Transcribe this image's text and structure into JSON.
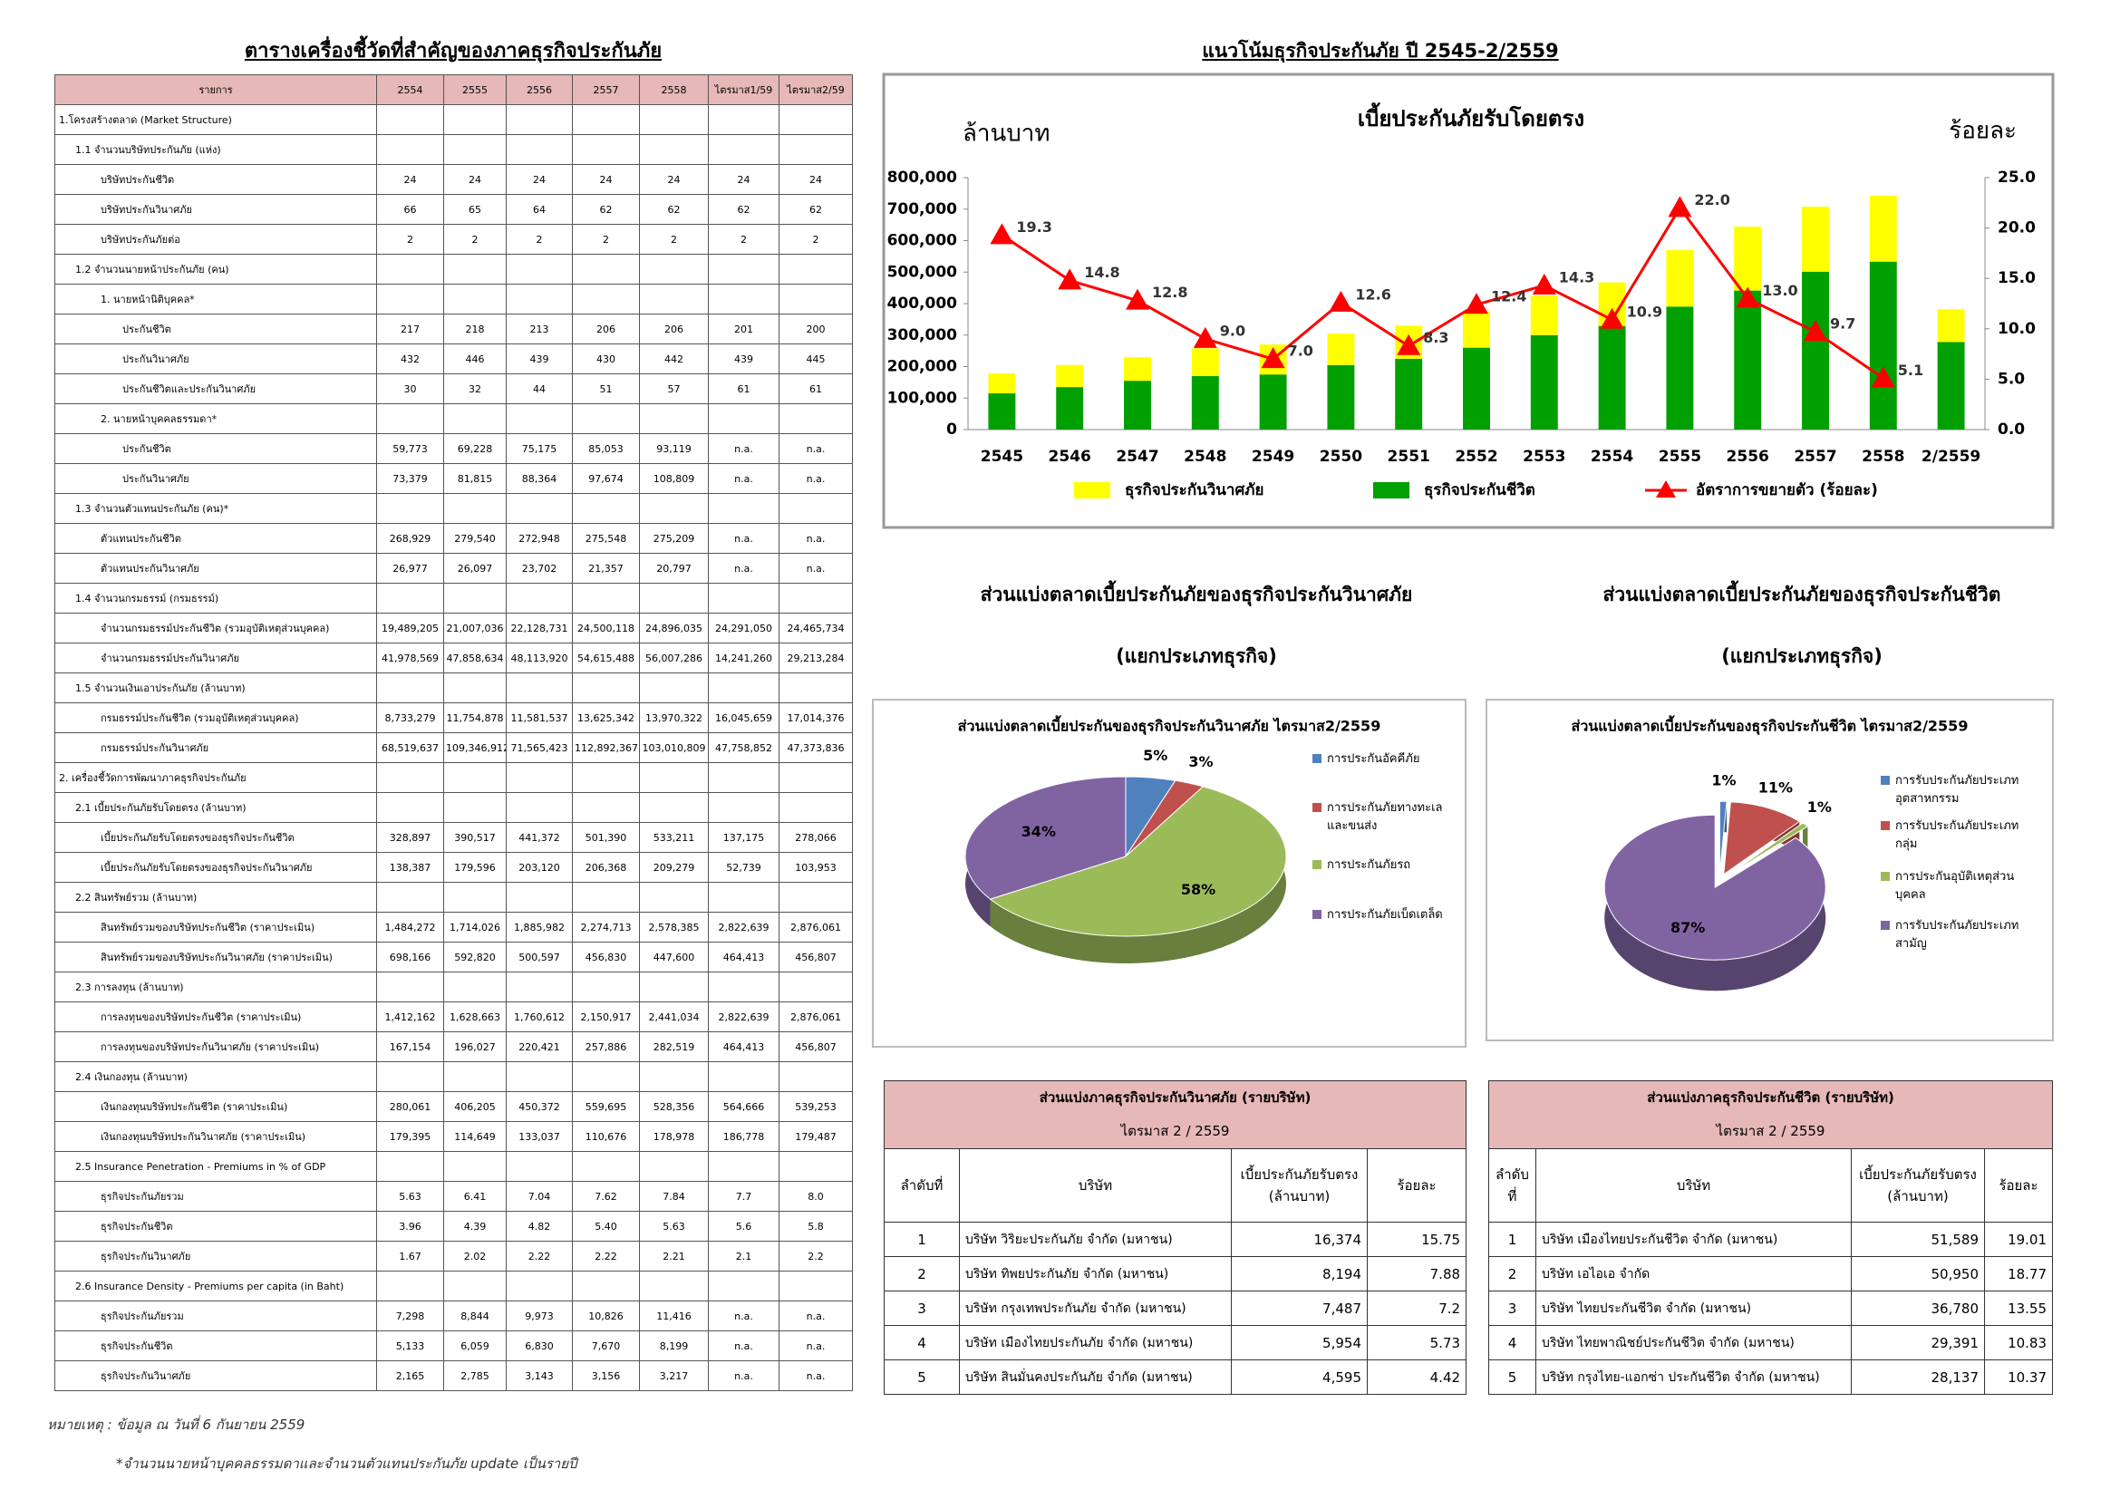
{
  "left_table": {
    "title": "ตารางเครื่องชี้วัดที่สำคัญของภาคธุรกิจประกันภัย",
    "header": [
      "รายการ",
      "2554",
      "2555",
      "2556",
      "2557",
      "2558",
      "ไตรมาส1/59",
      "ไตรมาส2/59"
    ],
    "rows": [
      [
        "1.โครงสร้างตลาด (Market Structure)"
      ],
      [
        "1.1 จำนวนบริษัทประกันภัย (แห่ง)"
      ],
      [
        "บริษัทประกันชีวิต",
        "24",
        "24",
        "24",
        "24",
        "24",
        "24",
        "24"
      ],
      [
        "บริษัทประกันวินาศภัย",
        "66",
        "65",
        "64",
        "62",
        "62",
        "62",
        "62"
      ],
      [
        "บริษัทประกันภัยต่อ",
        "2",
        "2",
        "2",
        "2",
        "2",
        "2",
        "2"
      ],
      [
        "1.2 จำนวนนายหน้าประกันภัย (คน)"
      ],
      [
        "1. นายหน้านิติบุคคล*"
      ],
      [
        "ประกันชีวิต",
        "217",
        "218",
        "213",
        "206",
        "206",
        "201",
        "200"
      ],
      [
        "ประกันวินาศภัย",
        "432",
        "446",
        "439",
        "430",
        "442",
        "439",
        "445"
      ],
      [
        "ประกันชีวิตและประกันวินาศภัย",
        "30",
        "32",
        "44",
        "51",
        "57",
        "61",
        "61"
      ],
      [
        "2. นายหน้าบุคคลธรรมดา*"
      ],
      [
        "ประกันชีวิต",
        "59,773",
        "69,228",
        "75,175",
        "85,053",
        "93,119",
        "n.a.",
        "n.a."
      ],
      [
        "ประกันวินาศภัย",
        "73,379",
        "81,815",
        "88,364",
        "97,674",
        "108,809",
        "n.a.",
        "n.a."
      ],
      [
        "1.3 จำนวนตัวแทนประกันภัย (คน)*"
      ],
      [
        "ตัวแทนประกันชีวิต",
        "268,929",
        "279,540",
        "272,948",
        "275,548",
        "275,209",
        "n.a.",
        "n.a."
      ],
      [
        "ตัวแทนประกันวินาศภัย",
        "26,977",
        "26,097",
        "23,702",
        "21,357",
        "20,797",
        "n.a.",
        "n.a."
      ],
      [
        "1.4 จำนวนกรมธรรม์ (กรมธรรม์)"
      ],
      [
        "จำนวนกรมธรรม์ประกันชีวิต (รวมอุบัติเหตุส่วนบุคคล)",
        "19,489,205",
        "21,007,036",
        "22,128,731",
        "24,500,118",
        "24,896,035",
        "24,291,050",
        "24,465,734"
      ],
      [
        "จำนวนกรมธรรม์ประกันวินาศภัย",
        "41,978,569",
        "47,858,634",
        "48,113,920",
        "54,615,488",
        "56,007,286",
        "14,241,260",
        "29,213,284"
      ],
      [
        "1.5 จำนวนเงินเอาประกันภัย (ล้านบาท)"
      ],
      [
        "กรมธรรม์ประกันชีวิต (รวมอุบัติเหตุส่วนบุคคล)",
        "8,733,279",
        "11,754,878",
        "11,581,537",
        "13,625,342",
        "13,970,322",
        "16,045,659",
        "17,014,376"
      ],
      [
        "กรมธรรม์ประกันวินาศภัย",
        "68,519,637",
        "109,346,912",
        "71,565,423",
        "112,892,367",
        "103,010,809",
        "47,758,852",
        "47,373,836"
      ],
      [
        "2. เครื่องชี้วัดการพัฒนาภาคธุรกิจประกันภัย"
      ],
      [
        "2.1 เบี้ยประกันภัยรับโดยตรง (ล้านบาท)"
      ],
      [
        "เบี้ยประกันภัยรับโดยตรงของธุรกิจประกันชีวิต",
        "328,897",
        "390,517",
        "441,372",
        "501,390",
        "533,211",
        "137,175",
        "278,066"
      ],
      [
        "เบี้ยประกันภัยรับโดยตรงของธุรกิจประกันวินาศภัย",
        "138,387",
        "179,596",
        "203,120",
        "206,368",
        "209,279",
        "52,739",
        "103,953"
      ],
      [
        "2.2 สินทรัพย์รวม (ล้านบาท)"
      ],
      [
        "สินทรัพย์รวมของบริษัทประกันชีวิต (ราคาประเมิน)",
        "1,484,272",
        "1,714,026",
        "1,885,982",
        "2,274,713",
        "2,578,385",
        "2,822,639",
        "2,876,061"
      ],
      [
        "สินทรัพย์รวมของบริษัทประกันวินาศภัย (ราคาประเมิน)",
        "698,166",
        "592,820",
        "500,597",
        "456,830",
        "447,600",
        "464,413",
        "456,807"
      ],
      [
        "2.3 การลงทุน (ล้านบาท)"
      ],
      [
        "การลงทุนของบริษัทประกันชีวิต (ราคาประเมิน)",
        "1,412,162",
        "1,628,663",
        "1,760,612",
        "2,150,917",
        "2,441,034",
        "2,822,639",
        "2,876,061"
      ],
      [
        "การลงทุนของบริษัทประกันวินาศภัย (ราคาประเมิน)",
        "167,154",
        "196,027",
        "220,421",
        "257,886",
        "282,519",
        "464,413",
        "456,807"
      ],
      [
        "2.4 เงินกองทุน (ล้านบาท)"
      ],
      [
        "เงินกองทุนบริษัทประกันชีวิต (ราคาประเมิน)",
        "280,061",
        "406,205",
        "450,372",
        "559,695",
        "528,356",
        "564,666",
        "539,253"
      ],
      [
        "เงินกองทุนบริษัทประกันวินาศภัย (ราคาประเมิน)",
        "179,395",
        "114,649",
        "133,037",
        "110,676",
        "178,978",
        "186,778",
        "179,487"
      ],
      [
        "2.5 Insurance Penetration - Premiums in % of GDP"
      ],
      [
        "ธุรกิจประกันภัยรวม",
        "5.63",
        "6.41",
        "7.04",
        "7.62",
        "7.84",
        "7.7",
        "8.0"
      ],
      [
        "ธุรกิจประกันชีวิต",
        "3.96",
        "4.39",
        "4.82",
        "5.40",
        "5.63",
        "5.6",
        "5.8"
      ],
      [
        "ธุรกิจประกันวินาศภัย",
        "1.67",
        "2.02",
        "2.22",
        "2.22",
        "2.21",
        "2.1",
        "2.2"
      ],
      [
        "2.6 Insurance Density - Premiums per capita (in Baht)"
      ],
      [
        "ธุรกิจประกันภัยรวม",
        "7,298",
        "8,844",
        "9,973",
        "10,826",
        "11,416",
        "n.a.",
        "n.a."
      ],
      [
        "ธุรกิจประกันชีวิต",
        "5,133",
        "6,059",
        "6,830",
        "7,670",
        "8,199",
        "n.a.",
        "n.a."
      ],
      [
        "ธุรกิจประกันวินาศภัย",
        "2,165",
        "2,785",
        "3,143",
        "3,156",
        "3,217",
        "n.a.",
        "n.a."
      ]
    ]
  },
  "notes": [
    "หมายเหตุ : ข้อมูล ณ วันที่ 6 กันยายน 2559",
    "*จำนวนนายหน้าบุคคลธรรมดาและจำนวนตัวแทนประกันภัย update เป็นรายปี"
  ],
  "chart_data": [
    {
      "type": "bar",
      "stacked": true,
      "heading": "แนวโน้มธุรกิจประกันภัย ปี 2545-2/2559",
      "title": "เบี้ยประกันภัยรับโดยตรง",
      "ylabel": "ล้านบาท",
      "y2label": "ร้อยละ",
      "categories": [
        "2545",
        "2546",
        "2547",
        "2548",
        "2549",
        "2550",
        "2551",
        "2552",
        "2553",
        "2554",
        "2555",
        "2556",
        "2557",
        "2558",
        "2/2559"
      ],
      "series": [
        {
          "name": "ธุรกิจประกันวินาศภัย",
          "color": "#ffff00",
          "values": [
            63000,
            70000,
            75000,
            88000,
            95000,
            100000,
            105000,
            115000,
            125000,
            138387,
            179596,
            203120,
            206368,
            209279,
            103953
          ]
        },
        {
          "name": "ธุรกิจประกันชีวิต",
          "color": "#00a000",
          "values": [
            115000,
            135000,
            155000,
            170000,
            175000,
            205000,
            225000,
            260000,
            300000,
            328897,
            390517,
            441372,
            501390,
            533211,
            278066
          ]
        },
        {
          "name": "อัตราการขยายตัว (ร้อยละ)",
          "color": "#ff0000",
          "type": "line",
          "axis": "y2",
          "values": [
            19.3,
            14.8,
            12.8,
            9.0,
            7.0,
            12.6,
            8.3,
            12.4,
            14.3,
            10.9,
            22.0,
            13.0,
            9.7,
            5.1,
            null
          ],
          "value_labels": [
            "19.3",
            "14.8",
            "12.8",
            "9.0",
            "7.0",
            "12.6",
            "8.3",
            "12.4",
            "14.3",
            "10.9",
            "22.0",
            "13.0",
            "9.7",
            "5.1",
            null
          ]
        }
      ],
      "ylim": [
        0,
        800000
      ],
      "yticks": [
        0,
        {
          "value": 100000,
          "label": "100,000"
        },
        {
          "value": 200000,
          "label": "200,000"
        },
        {
          "value": 300000,
          "label": "300,000"
        },
        {
          "value": 400000,
          "label": "400,000"
        },
        {
          "value": 500000,
          "label": "500,000"
        },
        {
          "value": 600000,
          "label": "600,000"
        },
        {
          "value": 700000,
          "label": "700,000"
        },
        {
          "value": 800000,
          "label": "800,000"
        }
      ],
      "y2lim": [
        0,
        25
      ],
      "y2ticks": [
        {
          "value": 0,
          "label": "0.0"
        },
        {
          "value": 5,
          "label": "5.0"
        },
        {
          "value": 10,
          "label": "10.0"
        },
        {
          "value": 15,
          "label": "15.0"
        },
        {
          "value": 20,
          "label": "20.0"
        },
        {
          "value": 25,
          "label": "25.0"
        }
      ],
      "grid": false,
      "legend": "bottom"
    },
    {
      "type": "pie",
      "heading": "ส่วนแบ่งตลาดเบี้ยประกันภัยของธุรกิจประกันวินาศภัย",
      "subheading": "(แยกประเภทธุรกิจ)",
      "title": "ส่วนแบ่งตลาดเบี้ยประกันของธุรกิจประกันวินาศภัย ไตรมาส2/2559",
      "labels": [
        "การประกันอัคคีภัย",
        "การประกันภัยทางทะเลและขนส่ง",
        "การประกันภัยรถ",
        "การประกันภัยเบ็ดเตล็ด"
      ],
      "values": [
        5,
        3,
        58,
        34
      ],
      "value_labels": [
        "5%",
        "3%",
        "58%",
        "34%"
      ],
      "colors": [
        "#4f81bd",
        "#c0504d",
        "#9bbb59",
        "#8064a2"
      ],
      "explode": false,
      "legend": "right"
    },
    {
      "type": "pie",
      "heading": "ส่วนแบ่งตลาดเบี้ยประกันภัยของธุรกิจประกันชีวิต",
      "subheading": "(แยกประเภทธุรกิจ)",
      "title": "ส่วนแบ่งตลาดเบี้ยประกันของธุรกิจประกันชีวิต ไตรมาส2/2559",
      "labels": [
        "การรับประกันภัยประเภทอุตสาหกรรม",
        "การรับประกันภัยประเภทกลุ่ม",
        "การประกันอุบัติเหตุส่วนบุคคล",
        "การรับประกันภัยประเภทสามัญ"
      ],
      "values": [
        1,
        11,
        1,
        87
      ],
      "value_labels": [
        "1%",
        "11%",
        "1%",
        "87%"
      ],
      "colors": [
        "#4f81bd",
        "#c0504d",
        "#9bbb59",
        "#8064a2"
      ],
      "explode": true,
      "legend": "right"
    }
  ],
  "company_tables": [
    {
      "title": "ส่วนแบ่งภาคธุรกิจประกันวินาศภัย (รายบริษัท)",
      "subtitle": "ไตรมาส 2 / 2559",
      "header": [
        "ลำดับที่",
        "บริษัท",
        "เบี้ยประกันภัยรับตรง (ล้านบาท)",
        "ร้อยละ"
      ],
      "rows": [
        [
          "1",
          "บริษัท วิริยะประกันภัย จำกัด (มหาชน)",
          "16,374",
          "15.75"
        ],
        [
          "2",
          "บริษัท ทิพยประกันภัย จำกัด (มหาชน)",
          "8,194",
          "7.88"
        ],
        [
          "3",
          "บริษัท กรุงเทพประกันภัย จำกัด (มหาชน)",
          "7,487",
          "7.2"
        ],
        [
          "4",
          "บริษัท เมืองไทยประกันภัย จำกัด (มหาชน)",
          "5,954",
          "5.73"
        ],
        [
          "5",
          "บริษัท สินมั่นคงประกันภัย จำกัด (มหาชน)",
          "4,595",
          "4.42"
        ]
      ]
    },
    {
      "title": "ส่วนแบ่งภาคธุรกิจประกันชีวิต (รายบริษัท)",
      "subtitle": "ไตรมาส 2 / 2559",
      "header": [
        "ลำดับที่",
        "บริษัท",
        "เบี้ยประกันภัยรับตรง (ล้านบาท)",
        "ร้อยละ"
      ],
      "rows": [
        [
          "1",
          "บริษัท เมืองไทยประกันชีวิต จำกัด (มหาชน)",
          "51,589",
          "19.01"
        ],
        [
          "2",
          "บริษัท เอไอเอ จำกัด",
          "50,950",
          "18.77"
        ],
        [
          "3",
          "บริษัท ไทยประกันชีวิต จำกัด (มหาชน)",
          "36,780",
          "13.55"
        ],
        [
          "4",
          "บริษัท ไทยพาณิชย์ประกันชีวิต จำกัด (มหาชน)",
          "29,391",
          "10.83"
        ],
        [
          "5",
          "บริษัท กรุงไทย-แอกซ่า ประกันชีวิต จำกัด (มหาชน)",
          "28,137",
          "10.37"
        ]
      ]
    }
  ]
}
